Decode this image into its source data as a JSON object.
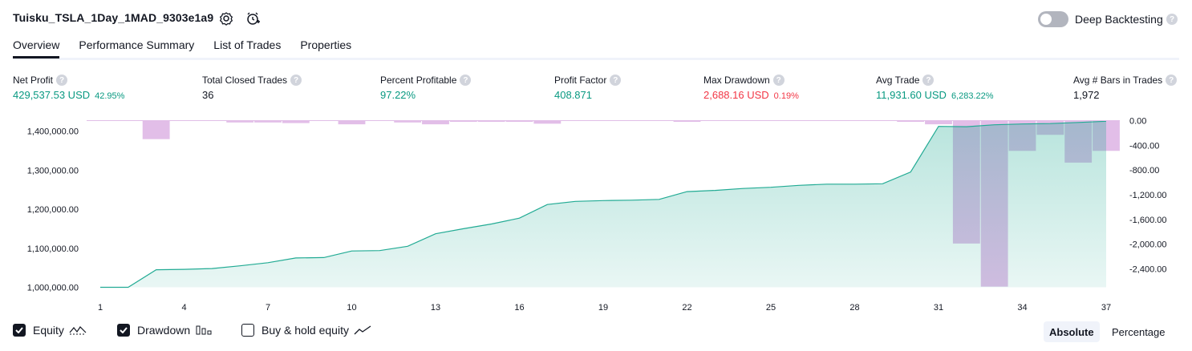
{
  "header": {
    "strategy_name": "Tuisku_TSLA_1Day_1MAD_9303e1a9",
    "settings_icon": "gear-icon",
    "alert_icon": "alarm-clock-icon",
    "deep_backtesting_label": "Deep Backtesting",
    "deep_backtesting_on": false
  },
  "tabs": [
    {
      "label": "Overview",
      "active": true
    },
    {
      "label": "Performance Summary",
      "active": false
    },
    {
      "label": "List of Trades",
      "active": false
    },
    {
      "label": "Properties",
      "active": false
    }
  ],
  "metrics": [
    {
      "label": "Net Profit",
      "value": "429,537.53 USD",
      "pct": "42.95%",
      "color": "#089981"
    },
    {
      "label": "Total Closed Trades",
      "value": "36",
      "pct": "",
      "color": "#131722"
    },
    {
      "label": "Percent Profitable",
      "value": "97.22%",
      "pct": "",
      "color": "#089981"
    },
    {
      "label": "Profit Factor",
      "value": "408.871",
      "pct": "",
      "color": "#089981"
    },
    {
      "label": "Max Drawdown",
      "value": "2,688.16 USD",
      "pct": "0.19%",
      "color": "#f23645"
    },
    {
      "label": "Avg Trade",
      "value": "11,931.60 USD",
      "pct": "6,283.22%",
      "color": "#089981"
    },
    {
      "label": "Avg # Bars in Trades",
      "value": "1,972",
      "pct": "",
      "color": "#131722"
    }
  ],
  "chart_data": {
    "type": "area",
    "x": [
      1,
      2,
      3,
      4,
      5,
      6,
      7,
      8,
      9,
      10,
      11,
      12,
      13,
      14,
      15,
      16,
      17,
      18,
      19,
      20,
      21,
      22,
      23,
      24,
      25,
      26,
      27,
      28,
      29,
      30,
      31,
      32,
      33,
      34,
      35,
      36,
      37
    ],
    "x_ticks": [
      "1",
      "4",
      "7",
      "10",
      "13",
      "16",
      "19",
      "22",
      "25",
      "28",
      "31",
      "34",
      "37"
    ],
    "left_axis_ticks": [
      "1,400,000.00",
      "1,300,000.00",
      "1,200,000.00",
      "1,100,000.00",
      "1,000,000.00"
    ],
    "right_axis_ticks": [
      "0.00",
      "-400.00",
      "-800.00",
      "-1,200.00",
      "-1,600.00",
      "-2,000.00",
      "-2,400.00"
    ],
    "ylim_left": [
      995000,
      1415000
    ],
    "ylim_right": [
      -2700,
      0
    ],
    "series": [
      {
        "name": "Equity",
        "values": [
          1000000,
          1000000,
          1045000,
          1046000,
          1048000,
          1055000,
          1063000,
          1075000,
          1076000,
          1093000,
          1094000,
          1105000,
          1137000,
          1150000,
          1162000,
          1177000,
          1212000,
          1220000,
          1222000,
          1223000,
          1225000,
          1245000,
          1248000,
          1253000,
          1256000,
          1261000,
          1264000,
          1264000,
          1265000,
          1295000,
          1412000,
          1411000,
          1416000,
          1418000,
          1419000,
          1422000,
          1425000
        ],
        "color": "#22ab94"
      },
      {
        "name": "Drawdown",
        "values": [
          -5,
          -5,
          -300,
          -5,
          -5,
          -30,
          -30,
          -40,
          -5,
          -60,
          -5,
          -30,
          -60,
          -20,
          -20,
          -20,
          -50,
          -5,
          -5,
          -5,
          -5,
          -20,
          -5,
          -5,
          -5,
          -5,
          -5,
          -5,
          -5,
          -20,
          -60,
          -1990,
          -2688,
          -490,
          -230,
          -680,
          -490
        ],
        "color": "#b39ddb"
      }
    ],
    "legend": [
      {
        "label": "Equity",
        "checked": true
      },
      {
        "label": "Drawdown",
        "checked": true
      },
      {
        "label": "Buy & hold equity",
        "checked": false
      }
    ],
    "scale_buttons": [
      {
        "label": "Absolute",
        "active": true
      },
      {
        "label": "Percentage",
        "active": false
      }
    ]
  }
}
